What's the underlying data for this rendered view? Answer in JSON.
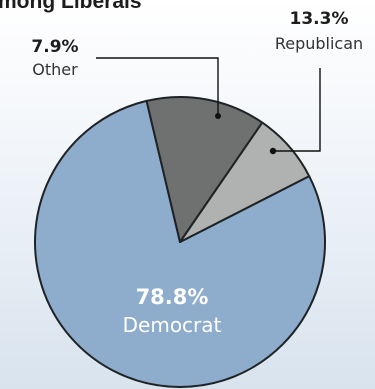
{
  "chart_data": {
    "type": "pie",
    "title": "mong Liberals",
    "slices": [
      {
        "label": "Democrat",
        "value": 78.8,
        "display": "78.8%",
        "color": "#8eaccb"
      },
      {
        "label": "Republican",
        "value": 13.3,
        "display": "13.3%",
        "color": "#6f7070"
      },
      {
        "label": "Other",
        "value": 7.9,
        "display": "7.9%",
        "color": "#b0b1b1"
      }
    ]
  },
  "colors": {
    "background_top": "#ffffff",
    "background_bottom": "#d8e3ee",
    "slice_stroke": "#1f2326",
    "leader_line": "#111111",
    "dark_text": "#1d1d1d",
    "label_text": "#333333",
    "inside_text": "#ffffff"
  }
}
